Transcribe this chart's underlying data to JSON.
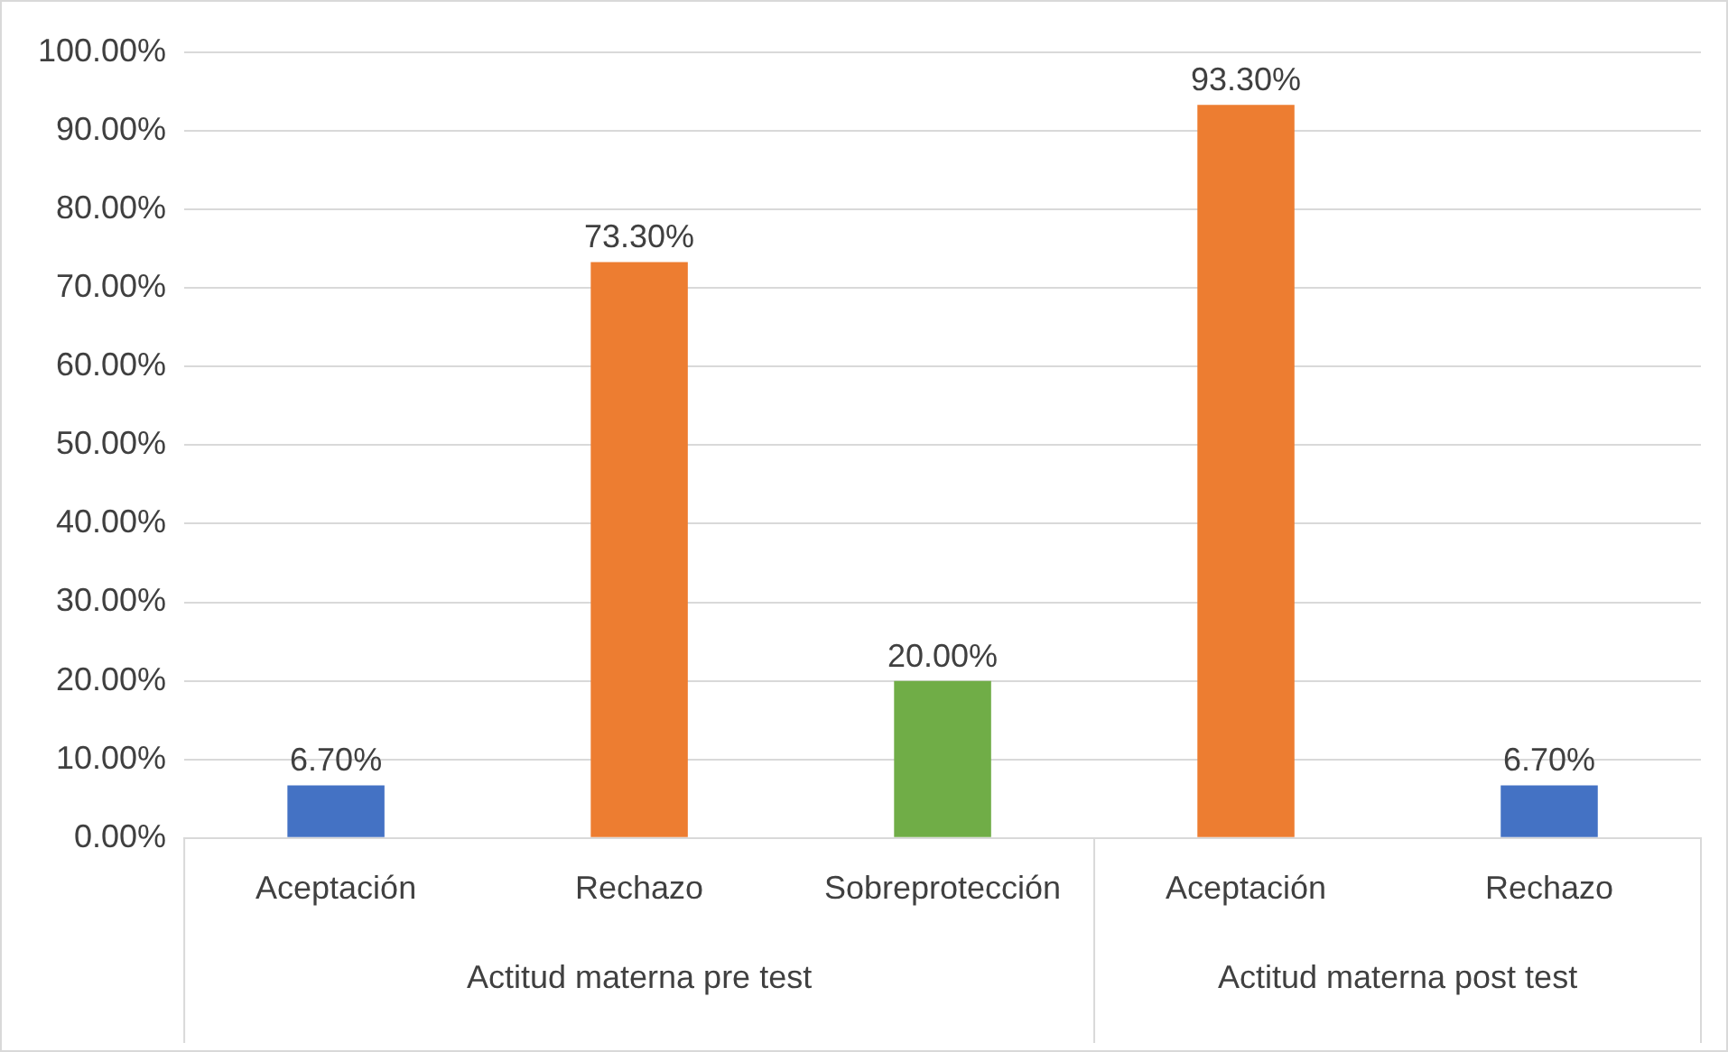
{
  "chart_data": {
    "type": "bar",
    "categories": [
      "Aceptación",
      "Rechazo",
      "Sobreprotección",
      "Aceptación",
      "Rechazo"
    ],
    "values": [
      6.7,
      73.3,
      20,
      93.3,
      6.7
    ],
    "colors": [
      "#4472c4",
      "#ed7d31",
      "#70ad47",
      "#ed7d31",
      "#4472c4"
    ],
    "value_labels": [
      "6.70%",
      "73.30%",
      "20.00%",
      "93.30%",
      "6.70%"
    ],
    "ylim": [
      0,
      100
    ],
    "yticks": [
      {
        "value": 0,
        "label": "0.00%"
      },
      {
        "value": 10,
        "label": "10.00%"
      },
      {
        "value": 20,
        "label": "20.00%"
      },
      {
        "value": 30,
        "label": "30.00%"
      },
      {
        "value": 40,
        "label": "40.00%"
      },
      {
        "value": 50,
        "label": "50.00%"
      },
      {
        "value": 60,
        "label": "60.00%"
      },
      {
        "value": 70,
        "label": "70.00%"
      },
      {
        "value": 80,
        "label": "80.00%"
      },
      {
        "value": 90,
        "label": "90.00%"
      },
      {
        "value": 100,
        "label": "100.00%"
      }
    ],
    "annotations": [
      "Actitud materna pre test",
      "Actitud materna post test"
    ],
    "grid": "y",
    "legend": false
  }
}
